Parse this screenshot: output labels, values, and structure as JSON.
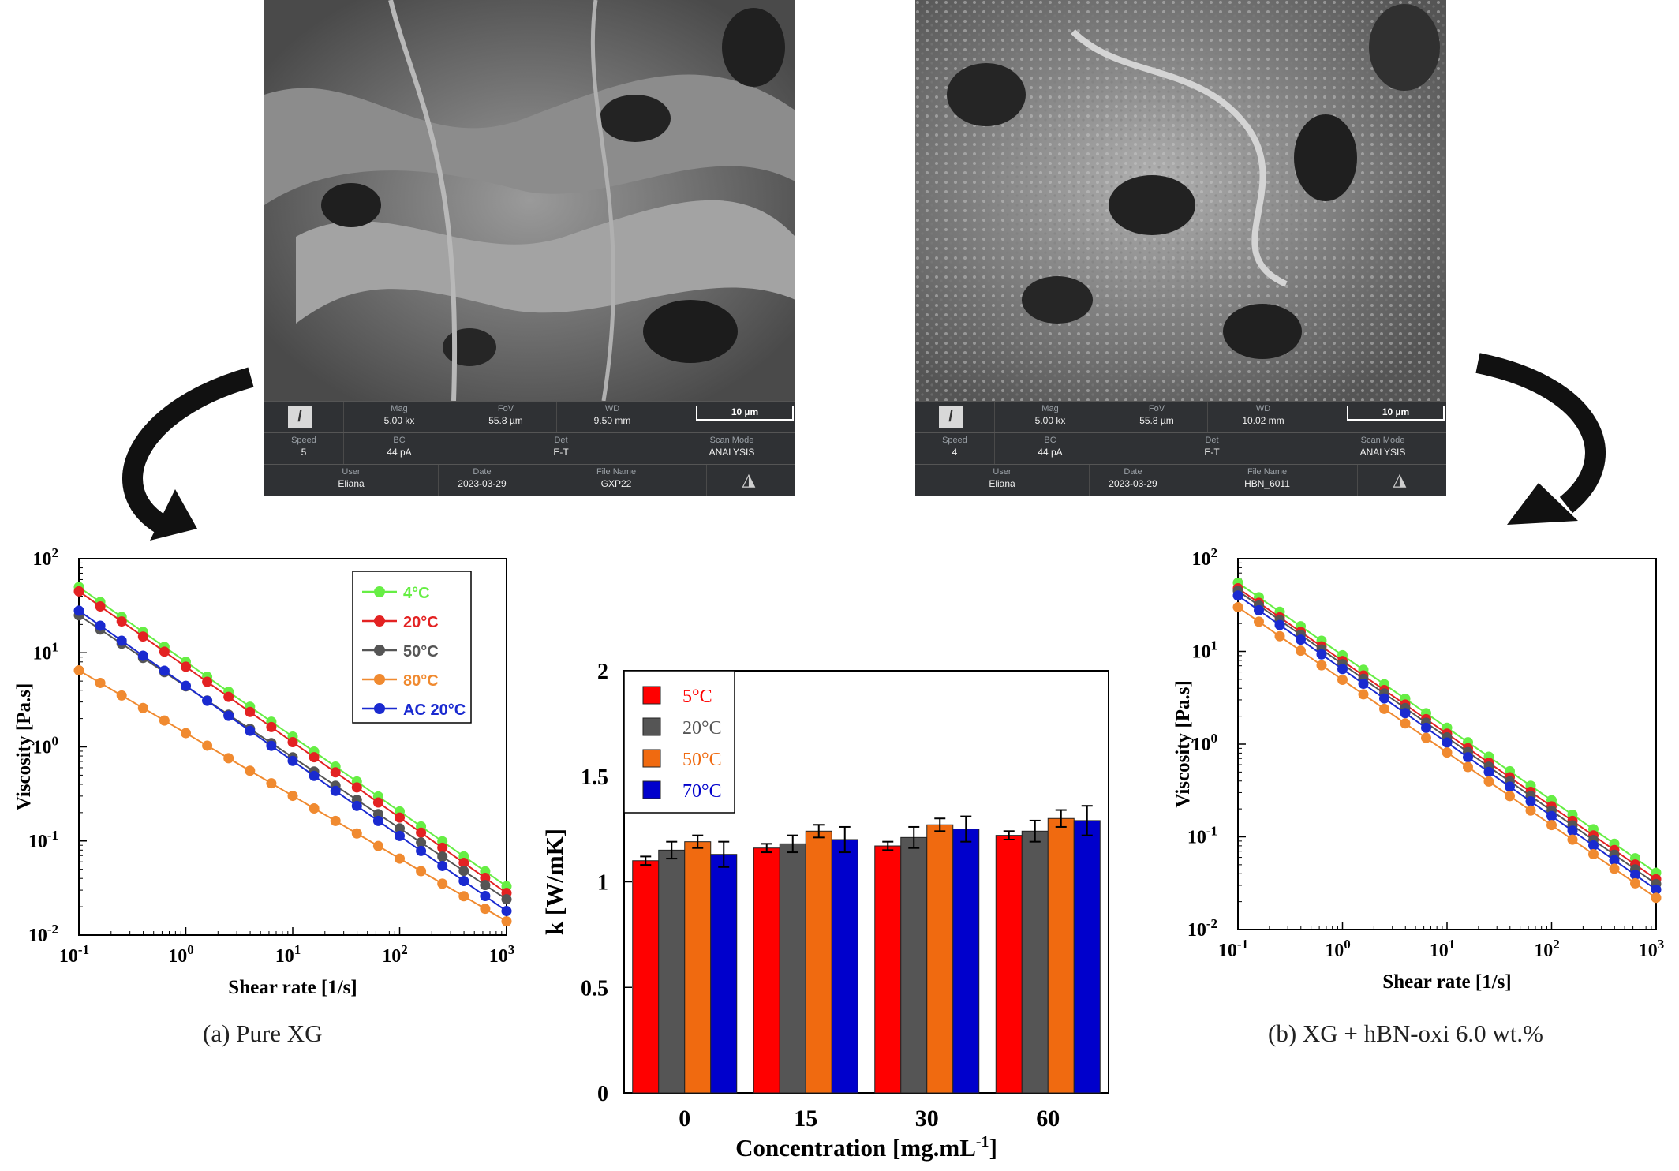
{
  "sem_left": {
    "fields": [
      {
        "label": "Mag",
        "value": "5.00 kx"
      },
      {
        "label": "FoV",
        "value": "55.8 µm"
      },
      {
        "label": "WD",
        "value": "9.50 mm"
      },
      {
        "label": "Speed",
        "value": "5"
      },
      {
        "label": "BC",
        "value": "44 pA"
      },
      {
        "label": "Det",
        "value": "E-T"
      },
      {
        "label": "Scan Mode",
        "value": "ANALYSIS"
      },
      {
        "label": "User",
        "value": "Eliana"
      },
      {
        "label": "Date",
        "value": "2023-03-29"
      },
      {
        "label": "File Name",
        "value": "GXP22"
      }
    ],
    "scale_label": "10 µm"
  },
  "sem_right": {
    "fields": [
      {
        "label": "Mag",
        "value": "5.00 kx"
      },
      {
        "label": "FoV",
        "value": "55.8 µm"
      },
      {
        "label": "WD",
        "value": "10.02 mm"
      },
      {
        "label": "Speed",
        "value": "4"
      },
      {
        "label": "BC",
        "value": "44 pA"
      },
      {
        "label": "Det",
        "value": "E-T"
      },
      {
        "label": "Scan Mode",
        "value": "ANALYSIS"
      },
      {
        "label": "User",
        "value": "Eliana"
      },
      {
        "label": "Date",
        "value": "2023-03-29"
      },
      {
        "label": "File Name",
        "value": "HBN_6011"
      }
    ],
    "scale_label": "10 µm"
  },
  "captions": {
    "left": "(a)  Pure XG",
    "right": "(b) XG + hBN-oxi 6.0 wt.%"
  },
  "chart_data": [
    {
      "type": "line",
      "xscale": "log",
      "yscale": "log",
      "xlabel": "Shear rate [1/s]",
      "ylabel": "Viscosity [Pa.s]",
      "xlim": [
        0.1,
        1000
      ],
      "ylim": [
        0.01,
        100
      ],
      "x_ticks": [
        0.1,
        1,
        10,
        100,
        1000
      ],
      "y_ticks": [
        0.01,
        0.1,
        1,
        10,
        100
      ],
      "legend_position": "top-right",
      "series": [
        {
          "name": "4°C",
          "color": "#66ee44",
          "y_start": 50,
          "y_end": 0.033
        },
        {
          "name": "20°C",
          "color": "#e32222",
          "y_start": 45,
          "y_end": 0.028
        },
        {
          "name": "50°C",
          "color": "#555555",
          "y_start": 25,
          "y_end": 0.024
        },
        {
          "name": "80°C",
          "color": "#f08a30",
          "y_start": 6.5,
          "y_end": 0.014
        },
        {
          "name": "AC 20°C",
          "color": "#1a2ad0",
          "y_start": 28,
          "y_end": 0.018
        }
      ],
      "points_per_decade": 5
    },
    {
      "type": "bar",
      "categories": [
        "0",
        "15",
        "30",
        "60"
      ],
      "xlabel": "Concentration [mg.mL",
      "xlabel_sup": "-1",
      "xlabel_end": "]",
      "ylabel": "k [W/mK]",
      "ylim": [
        0,
        2
      ],
      "y_ticks": [
        "0",
        "0.5",
        "1",
        "1.5",
        "2"
      ],
      "legend_position": "top-left",
      "series": [
        {
          "name": "5°C",
          "color": "#ff0000",
          "values": [
            1.1,
            1.16,
            1.17,
            1.22
          ],
          "errors": [
            0.02,
            0.02,
            0.02,
            0.02
          ]
        },
        {
          "name": "20°C",
          "color": "#555555",
          "values": [
            1.15,
            1.18,
            1.21,
            1.24
          ],
          "errors": [
            0.04,
            0.04,
            0.05,
            0.05
          ]
        },
        {
          "name": "50°C",
          "color": "#f06a10",
          "values": [
            1.19,
            1.24,
            1.27,
            1.3
          ],
          "errors": [
            0.03,
            0.03,
            0.03,
            0.04
          ]
        },
        {
          "name": "70°C",
          "color": "#0000cc",
          "values": [
            1.13,
            1.2,
            1.25,
            1.29
          ],
          "errors": [
            0.06,
            0.06,
            0.06,
            0.07
          ]
        }
      ]
    },
    {
      "type": "line",
      "xscale": "log",
      "yscale": "log",
      "xlabel": "Shear rate [1/s]",
      "ylabel": "Viscosity [Pa.s]",
      "xlim": [
        0.1,
        1000
      ],
      "ylim": [
        0.01,
        100
      ],
      "x_ticks": [
        0.1,
        1,
        10,
        100,
        1000
      ],
      "y_ticks": [
        0.01,
        0.1,
        1,
        10,
        100
      ],
      "series": [
        {
          "color": "#66ee44",
          "y_start": 55,
          "y_end": 0.041
        },
        {
          "color": "#e32222",
          "y_start": 48,
          "y_end": 0.035
        },
        {
          "color": "#555555",
          "y_start": 45,
          "y_end": 0.031
        },
        {
          "color": "#1a2ad0",
          "y_start": 40,
          "y_end": 0.027
        },
        {
          "color": "#f08a30",
          "y_start": 30,
          "y_end": 0.022
        }
      ],
      "points_per_decade": 5
    }
  ]
}
